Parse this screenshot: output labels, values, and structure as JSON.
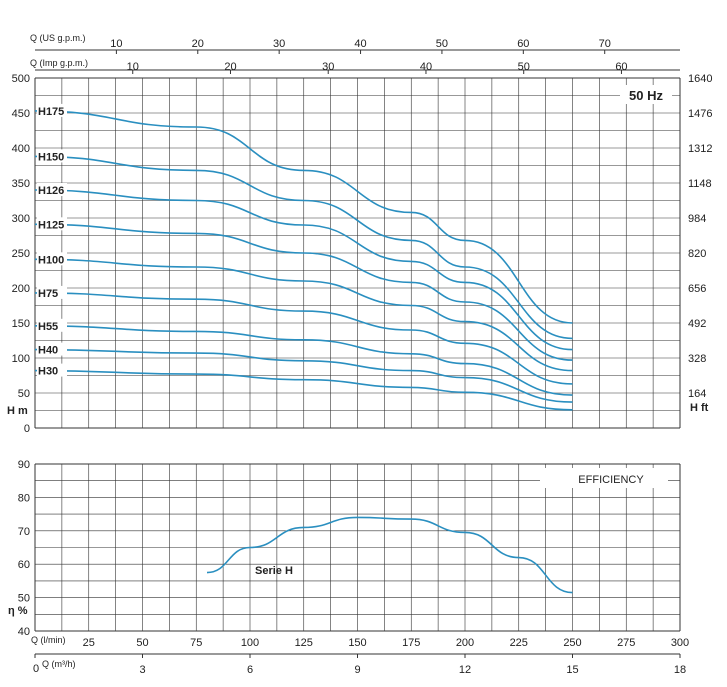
{
  "chart_data": [
    {
      "type": "line",
      "title": "",
      "badge": "50 Hz",
      "ylabel": "H m",
      "ylabel_right": "H ft",
      "ylim": [
        0,
        500
      ],
      "yticks": [
        0,
        50,
        100,
        150,
        200,
        250,
        300,
        350,
        400,
        450,
        500
      ],
      "right_ticks": [
        164,
        328,
        492,
        656,
        820,
        984,
        1148,
        1312,
        1476,
        1640
      ],
      "top_axis_us": {
        "label": "Q (US g.p.m.)",
        "ticks": [
          10,
          20,
          30,
          40,
          50,
          60,
          70
        ]
      },
      "top_axis_imp": {
        "label": "Q (Imp g.p.m.)",
        "ticks": [
          10,
          20,
          30,
          40,
          50,
          60
        ]
      },
      "series": [
        {
          "name": "H175",
          "x": [
            0,
            75,
            125,
            175,
            200,
            250
          ],
          "y": [
            453,
            430,
            368,
            308,
            268,
            150
          ]
        },
        {
          "name": "H150",
          "x": [
            0,
            75,
            125,
            175,
            200,
            250
          ],
          "y": [
            388,
            368,
            325,
            268,
            230,
            128
          ]
        },
        {
          "name": "H126",
          "x": [
            0,
            75,
            125,
            175,
            200,
            250
          ],
          "y": [
            340,
            325,
            290,
            238,
            208,
            112
          ]
        },
        {
          "name": "H125",
          "x": [
            0,
            75,
            125,
            175,
            200,
            250
          ],
          "y": [
            291,
            278,
            250,
            208,
            180,
            97
          ]
        },
        {
          "name": "H100",
          "x": [
            0,
            75,
            125,
            175,
            200,
            250
          ],
          "y": [
            241,
            230,
            210,
            175,
            152,
            82
          ]
        },
        {
          "name": "H75",
          "x": [
            0,
            75,
            125,
            175,
            200,
            250
          ],
          "y": [
            193,
            184,
            167,
            140,
            121,
            63
          ]
        },
        {
          "name": "H55",
          "x": [
            0,
            75,
            125,
            175,
            200,
            250
          ],
          "y": [
            146,
            138,
            126,
            106,
            92,
            47
          ]
        },
        {
          "name": "H40",
          "x": [
            0,
            75,
            125,
            175,
            200,
            250
          ],
          "y": [
            112,
            107,
            96,
            82,
            72,
            37
          ]
        },
        {
          "name": "H30",
          "x": [
            0,
            75,
            125,
            175,
            200,
            250
          ],
          "y": [
            82,
            77,
            69,
            58,
            51,
            26
          ]
        }
      ]
    },
    {
      "type": "line",
      "title": "EFFICIENCY",
      "ylabel": "η %",
      "ylim": [
        40,
        90
      ],
      "yticks": [
        40,
        50,
        60,
        70,
        80,
        90
      ],
      "xlim": [
        0,
        300
      ],
      "x_label_lmin": "Q (l/min)",
      "x_ticks_lmin": [
        25,
        50,
        75,
        100,
        125,
        150,
        175,
        200,
        225,
        250,
        275,
        300
      ],
      "x_label_m3h": "Q (m³/h)",
      "x_ticks_m3h": [
        0,
        3,
        6,
        9,
        12,
        15,
        18
      ],
      "series": [
        {
          "name": "Serie H",
          "x": [
            80,
            100,
            125,
            150,
            175,
            200,
            225,
            250
          ],
          "y": [
            57.5,
            65,
            71,
            74,
            73.5,
            69.5,
            62,
            51.5
          ]
        }
      ]
    }
  ],
  "x_origin_label": "0"
}
